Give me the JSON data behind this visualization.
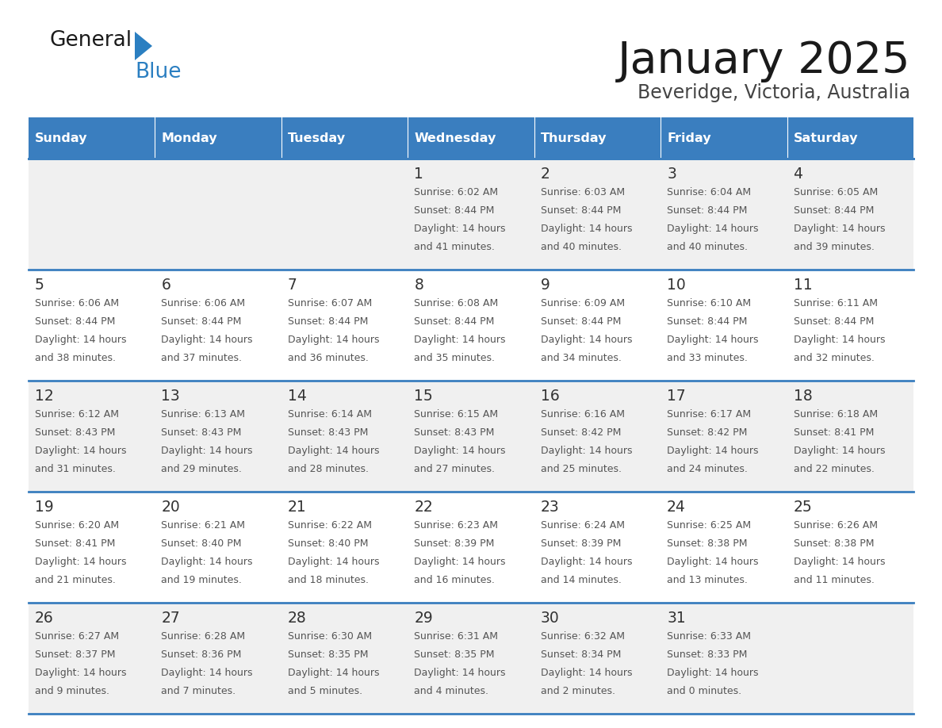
{
  "title": "January 2025",
  "subtitle": "Beveridge, Victoria, Australia",
  "header_bg": "#3a7ebf",
  "header_text": "#ffffff",
  "row_bg_odd": "#f0f0f0",
  "row_bg_even": "#ffffff",
  "cell_text": "#333333",
  "day_number_color": "#333333",
  "separator_color": "#3a7ebf",
  "days_of_week": [
    "Sunday",
    "Monday",
    "Tuesday",
    "Wednesday",
    "Thursday",
    "Friday",
    "Saturday"
  ],
  "calendar_data": [
    [
      {
        "day": 0
      },
      {
        "day": 0
      },
      {
        "day": 0
      },
      {
        "day": 1,
        "sunrise": "6:02 AM",
        "sunset": "8:44 PM",
        "dl1": "Daylight: 14 hours",
        "dl2": "and 41 minutes."
      },
      {
        "day": 2,
        "sunrise": "6:03 AM",
        "sunset": "8:44 PM",
        "dl1": "Daylight: 14 hours",
        "dl2": "and 40 minutes."
      },
      {
        "day": 3,
        "sunrise": "6:04 AM",
        "sunset": "8:44 PM",
        "dl1": "Daylight: 14 hours",
        "dl2": "and 40 minutes."
      },
      {
        "day": 4,
        "sunrise": "6:05 AM",
        "sunset": "8:44 PM",
        "dl1": "Daylight: 14 hours",
        "dl2": "and 39 minutes."
      }
    ],
    [
      {
        "day": 5,
        "sunrise": "6:06 AM",
        "sunset": "8:44 PM",
        "dl1": "Daylight: 14 hours",
        "dl2": "and 38 minutes."
      },
      {
        "day": 6,
        "sunrise": "6:06 AM",
        "sunset": "8:44 PM",
        "dl1": "Daylight: 14 hours",
        "dl2": "and 37 minutes."
      },
      {
        "day": 7,
        "sunrise": "6:07 AM",
        "sunset": "8:44 PM",
        "dl1": "Daylight: 14 hours",
        "dl2": "and 36 minutes."
      },
      {
        "day": 8,
        "sunrise": "6:08 AM",
        "sunset": "8:44 PM",
        "dl1": "Daylight: 14 hours",
        "dl2": "and 35 minutes."
      },
      {
        "day": 9,
        "sunrise": "6:09 AM",
        "sunset": "8:44 PM",
        "dl1": "Daylight: 14 hours",
        "dl2": "and 34 minutes."
      },
      {
        "day": 10,
        "sunrise": "6:10 AM",
        "sunset": "8:44 PM",
        "dl1": "Daylight: 14 hours",
        "dl2": "and 33 minutes."
      },
      {
        "day": 11,
        "sunrise": "6:11 AM",
        "sunset": "8:44 PM",
        "dl1": "Daylight: 14 hours",
        "dl2": "and 32 minutes."
      }
    ],
    [
      {
        "day": 12,
        "sunrise": "6:12 AM",
        "sunset": "8:43 PM",
        "dl1": "Daylight: 14 hours",
        "dl2": "and 31 minutes."
      },
      {
        "day": 13,
        "sunrise": "6:13 AM",
        "sunset": "8:43 PM",
        "dl1": "Daylight: 14 hours",
        "dl2": "and 29 minutes."
      },
      {
        "day": 14,
        "sunrise": "6:14 AM",
        "sunset": "8:43 PM",
        "dl1": "Daylight: 14 hours",
        "dl2": "and 28 minutes."
      },
      {
        "day": 15,
        "sunrise": "6:15 AM",
        "sunset": "8:43 PM",
        "dl1": "Daylight: 14 hours",
        "dl2": "and 27 minutes."
      },
      {
        "day": 16,
        "sunrise": "6:16 AM",
        "sunset": "8:42 PM",
        "dl1": "Daylight: 14 hours",
        "dl2": "and 25 minutes."
      },
      {
        "day": 17,
        "sunrise": "6:17 AM",
        "sunset": "8:42 PM",
        "dl1": "Daylight: 14 hours",
        "dl2": "and 24 minutes."
      },
      {
        "day": 18,
        "sunrise": "6:18 AM",
        "sunset": "8:41 PM",
        "dl1": "Daylight: 14 hours",
        "dl2": "and 22 minutes."
      }
    ],
    [
      {
        "day": 19,
        "sunrise": "6:20 AM",
        "sunset": "8:41 PM",
        "dl1": "Daylight: 14 hours",
        "dl2": "and 21 minutes."
      },
      {
        "day": 20,
        "sunrise": "6:21 AM",
        "sunset": "8:40 PM",
        "dl1": "Daylight: 14 hours",
        "dl2": "and 19 minutes."
      },
      {
        "day": 21,
        "sunrise": "6:22 AM",
        "sunset": "8:40 PM",
        "dl1": "Daylight: 14 hours",
        "dl2": "and 18 minutes."
      },
      {
        "day": 22,
        "sunrise": "6:23 AM",
        "sunset": "8:39 PM",
        "dl1": "Daylight: 14 hours",
        "dl2": "and 16 minutes."
      },
      {
        "day": 23,
        "sunrise": "6:24 AM",
        "sunset": "8:39 PM",
        "dl1": "Daylight: 14 hours",
        "dl2": "and 14 minutes."
      },
      {
        "day": 24,
        "sunrise": "6:25 AM",
        "sunset": "8:38 PM",
        "dl1": "Daylight: 14 hours",
        "dl2": "and 13 minutes."
      },
      {
        "day": 25,
        "sunrise": "6:26 AM",
        "sunset": "8:38 PM",
        "dl1": "Daylight: 14 hours",
        "dl2": "and 11 minutes."
      }
    ],
    [
      {
        "day": 26,
        "sunrise": "6:27 AM",
        "sunset": "8:37 PM",
        "dl1": "Daylight: 14 hours",
        "dl2": "and 9 minutes."
      },
      {
        "day": 27,
        "sunrise": "6:28 AM",
        "sunset": "8:36 PM",
        "dl1": "Daylight: 14 hours",
        "dl2": "and 7 minutes."
      },
      {
        "day": 28,
        "sunrise": "6:30 AM",
        "sunset": "8:35 PM",
        "dl1": "Daylight: 14 hours",
        "dl2": "and 5 minutes."
      },
      {
        "day": 29,
        "sunrise": "6:31 AM",
        "sunset": "8:35 PM",
        "dl1": "Daylight: 14 hours",
        "dl2": "and 4 minutes."
      },
      {
        "day": 30,
        "sunrise": "6:32 AM",
        "sunset": "8:34 PM",
        "dl1": "Daylight: 14 hours",
        "dl2": "and 2 minutes."
      },
      {
        "day": 31,
        "sunrise": "6:33 AM",
        "sunset": "8:33 PM",
        "dl1": "Daylight: 14 hours",
        "dl2": "and 0 minutes."
      },
      {
        "day": 0
      }
    ]
  ]
}
